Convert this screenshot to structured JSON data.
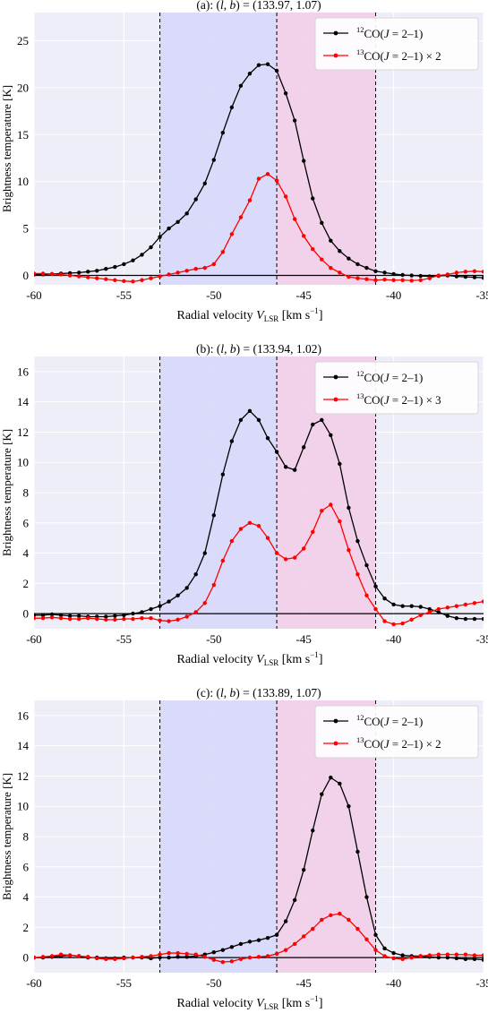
{
  "chart_data": [
    {
      "type": "line",
      "title_prefix": "(a): (",
      "title_l": "l",
      "title_sep": ", ",
      "title_b": "b",
      "title_suffix": ") = (133.97, 1.07)",
      "xlabel_main": "Radial velocity ",
      "xlabel_v": "V",
      "xlabel_sub": "LSR",
      "xlabel_units": " [km s",
      "xlabel_exp": "−1",
      "xlabel_close": "]",
      "ylabel": "Brightness temperature [K]",
      "xlim": [
        -60,
        -35
      ],
      "ylim": [
        -1,
        28
      ],
      "xticks": [
        -60,
        -55,
        -50,
        -45,
        -40,
        -35
      ],
      "yticks": [
        0,
        5,
        10,
        15,
        20,
        25
      ],
      "grid": true,
      "legend_position": "top-right",
      "regions": [
        {
          "from": -53,
          "to": -46.5,
          "color": "#d6d6fa"
        },
        {
          "from": -46.5,
          "to": -41,
          "color": "#f2cde8"
        }
      ],
      "vlines": [
        -53,
        -46.5,
        -41
      ],
      "series": [
        {
          "name_sup": "12",
          "name_main": "CO(",
          "name_j": "J",
          "name_rest": " = 2–1)",
          "color": "#000000",
          "x": [
            -60,
            -59.5,
            -59,
            -58.5,
            -58,
            -57.5,
            -57,
            -56.5,
            -56,
            -55.5,
            -55,
            -54.5,
            -54,
            -53.5,
            -53,
            -52.5,
            -52,
            -51.5,
            -51,
            -50.5,
            -50,
            -49.5,
            -49,
            -48.5,
            -48,
            -47.5,
            -47,
            -46.5,
            -46,
            -45.5,
            -45,
            -44.5,
            -44,
            -43.5,
            -43,
            -42.5,
            -42,
            -41.5,
            -41,
            -40.5,
            -40,
            -39.5,
            -39,
            -38.5,
            -38,
            -37.5,
            -37,
            -36.5,
            -36,
            -35.5,
            -35
          ],
          "y": [
            0.1,
            0.1,
            0.15,
            0.2,
            0.25,
            0.3,
            0.4,
            0.5,
            0.7,
            0.9,
            1.2,
            1.6,
            2.2,
            3.0,
            4.1,
            5.0,
            5.7,
            6.6,
            8.1,
            9.8,
            12.3,
            15.2,
            17.9,
            20.2,
            21.5,
            22.4,
            22.5,
            21.8,
            19.4,
            16.5,
            12.2,
            8.2,
            5.6,
            3.7,
            2.6,
            1.8,
            1.2,
            0.8,
            0.45,
            0.3,
            0.15,
            0.05,
            0,
            -0.05,
            -0.1,
            -0.05,
            0,
            -0.1,
            -0.15,
            -0.2,
            -0.25
          ]
        },
        {
          "name_sup": "13",
          "name_main": "CO(",
          "name_j": "J",
          "name_rest": " = 2–1) × 2",
          "color": "#ff0000",
          "x": [
            -60,
            -59.5,
            -59,
            -58.5,
            -58,
            -57.5,
            -57,
            -56.5,
            -56,
            -55.5,
            -55,
            -54.5,
            -54,
            -53.5,
            -53,
            -52.5,
            -52,
            -51.5,
            -51,
            -50.5,
            -50,
            -49.5,
            -49,
            -48.5,
            -48,
            -47.5,
            -47,
            -46.5,
            -46,
            -45.5,
            -45,
            -44.5,
            -44,
            -43.5,
            -43,
            -42.5,
            -42,
            -41.5,
            -41,
            -40.5,
            -40,
            -39.5,
            -39,
            -38.5,
            -38,
            -37.5,
            -37,
            -36.5,
            -36,
            -35.5,
            -35
          ],
          "y": [
            0.2,
            0.2,
            0.15,
            0.1,
            0,
            -0.1,
            -0.2,
            -0.3,
            -0.4,
            -0.5,
            -0.6,
            -0.65,
            -0.5,
            -0.3,
            -0.1,
            0.1,
            0.3,
            0.5,
            0.7,
            0.8,
            1.2,
            2.5,
            4.4,
            6.2,
            8.0,
            10.3,
            10.8,
            10.1,
            8.4,
            6.0,
            4.2,
            2.8,
            1.7,
            0.8,
            0.3,
            -0.15,
            -0.3,
            -0.4,
            -0.5,
            -0.45,
            -0.5,
            -0.5,
            -0.55,
            -0.5,
            -0.3,
            0,
            0.1,
            0.3,
            0.4,
            0.45,
            0.4
          ]
        }
      ]
    },
    {
      "type": "line",
      "title_prefix": "(b): (",
      "title_l": "l",
      "title_sep": ", ",
      "title_b": "b",
      "title_suffix": ") = (133.94, 1.02)",
      "xlabel_main": "Radial velocity ",
      "xlabel_v": "V",
      "xlabel_sub": "LSR",
      "xlabel_units": " [km s",
      "xlabel_exp": "−1",
      "xlabel_close": "]",
      "ylabel": "Brightness temperature [K]",
      "xlim": [
        -60,
        -35
      ],
      "ylim": [
        -1,
        17
      ],
      "xticks": [
        -60,
        -55,
        -50,
        -45,
        -40,
        -35
      ],
      "yticks": [
        0,
        2,
        4,
        6,
        8,
        10,
        12,
        14,
        16
      ],
      "grid": true,
      "legend_position": "top-right",
      "regions": [
        {
          "from": -53,
          "to": -46.5,
          "color": "#d6d6fa"
        },
        {
          "from": -46.5,
          "to": -41,
          "color": "#f2cde8"
        }
      ],
      "vlines": [
        -53,
        -46.5,
        -41
      ],
      "series": [
        {
          "name_sup": "12",
          "name_main": "CO(",
          "name_j": "J",
          "name_rest": " = 2–1)",
          "color": "#000000",
          "x": [
            -60,
            -59.5,
            -59,
            -58.5,
            -58,
            -57.5,
            -57,
            -56.5,
            -56,
            -55.5,
            -55,
            -54.5,
            -54,
            -53.5,
            -53,
            -52.5,
            -52,
            -51.5,
            -51,
            -50.5,
            -50,
            -49.5,
            -49,
            -48.5,
            -48,
            -47.5,
            -47,
            -46.5,
            -46,
            -45.5,
            -45,
            -44.5,
            -44,
            -43.5,
            -43,
            -42.5,
            -42,
            -41.5,
            -41,
            -40.5,
            -40,
            -39.5,
            -39,
            -38.5,
            -38,
            -37.5,
            -37,
            -36.5,
            -36,
            -35.5,
            -35
          ],
          "y": [
            -0.1,
            -0.1,
            -0.05,
            -0.1,
            -0.15,
            -0.15,
            -0.2,
            -0.2,
            -0.2,
            -0.15,
            -0.1,
            0,
            0.1,
            0.3,
            0.5,
            0.8,
            1.2,
            1.7,
            2.6,
            4.0,
            6.5,
            9.2,
            11.4,
            12.8,
            13.4,
            12.8,
            11.6,
            10.7,
            9.7,
            9.5,
            11.0,
            12.5,
            12.8,
            11.8,
            9.9,
            7.0,
            4.8,
            3.2,
            1.8,
            1.0,
            0.6,
            0.5,
            0.5,
            0.45,
            0.3,
            0.1,
            -0.15,
            -0.3,
            -0.35,
            -0.35,
            -0.35
          ]
        },
        {
          "name_sup": "13",
          "name_main": "CO(",
          "name_j": "J",
          "name_rest": " = 2–1) × 3",
          "color": "#ff0000",
          "x": [
            -60,
            -59.5,
            -59,
            -58.5,
            -58,
            -57.5,
            -57,
            -56.5,
            -56,
            -55.5,
            -55,
            -54.5,
            -54,
            -53.5,
            -53,
            -52.5,
            -52,
            -51.5,
            -51,
            -50.5,
            -50,
            -49.5,
            -49,
            -48.5,
            -48,
            -47.5,
            -47,
            -46.5,
            -46,
            -45.5,
            -45,
            -44.5,
            -44,
            -43.5,
            -43,
            -42.5,
            -42,
            -41.5,
            -41,
            -40.5,
            -40,
            -39.5,
            -39,
            -38.5,
            -38,
            -37.5,
            -37,
            -36.5,
            -36,
            -35.5,
            -35
          ],
          "y": [
            -0.3,
            -0.3,
            -0.25,
            -0.3,
            -0.35,
            -0.35,
            -0.3,
            -0.35,
            -0.4,
            -0.4,
            -0.35,
            -0.35,
            -0.3,
            -0.3,
            -0.45,
            -0.5,
            -0.4,
            -0.2,
            0.1,
            0.7,
            1.9,
            3.5,
            4.8,
            5.6,
            6.0,
            5.8,
            5.0,
            4.0,
            3.6,
            3.7,
            4.3,
            5.4,
            6.8,
            7.2,
            6.1,
            4.2,
            2.6,
            1.2,
            0.3,
            -0.5,
            -0.7,
            -0.65,
            -0.4,
            -0.1,
            0.1,
            0.3,
            0.4,
            0.5,
            0.6,
            0.7,
            0.8
          ]
        }
      ]
    },
    {
      "type": "line",
      "title_prefix": "(c): (",
      "title_l": "l",
      "title_sep": ", ",
      "title_b": "b",
      "title_suffix": ") = (133.89, 1.07)",
      "xlabel_main": "Radial velocity ",
      "xlabel_v": "V",
      "xlabel_sub": "LSR",
      "xlabel_units": " [km s",
      "xlabel_exp": "−1",
      "xlabel_close": "]",
      "ylabel": "Brightness temperature [K]",
      "xlim": [
        -60,
        -35
      ],
      "ylim": [
        -1,
        17
      ],
      "xticks": [
        -60,
        -55,
        -50,
        -45,
        -40,
        -35
      ],
      "yticks": [
        0,
        2,
        4,
        6,
        8,
        10,
        12,
        14,
        16
      ],
      "grid": true,
      "legend_position": "top-right",
      "regions": [
        {
          "from": -53,
          "to": -46.5,
          "color": "#d6d6fa"
        },
        {
          "from": -46.5,
          "to": -41,
          "color": "#f2cde8"
        }
      ],
      "vlines": [
        -53,
        -46.5,
        -41
      ],
      "series": [
        {
          "name_sup": "12",
          "name_main": "CO(",
          "name_j": "J",
          "name_rest": " = 2–1)",
          "color": "#000000",
          "x": [
            -60,
            -59.5,
            -59,
            -58.5,
            -58,
            -57.5,
            -57,
            -56.5,
            -56,
            -55.5,
            -55,
            -54.5,
            -54,
            -53.5,
            -53,
            -52.5,
            -52,
            -51.5,
            -51,
            -50.5,
            -50,
            -49.5,
            -49,
            -48.5,
            -48,
            -47.5,
            -47,
            -46.5,
            -46,
            -45.5,
            -45,
            -44.5,
            -44,
            -43.5,
            -43,
            -42.5,
            -42,
            -41.5,
            -41,
            -40.5,
            -40,
            -39.5,
            -39,
            -38.5,
            -38,
            -37.5,
            -37,
            -36.5,
            -36,
            -35.5,
            -35
          ],
          "y": [
            0,
            0,
            0.05,
            0.1,
            0.15,
            0.1,
            0,
            0,
            -0.05,
            -0.05,
            0,
            0,
            0,
            -0.05,
            0,
            0,
            0.05,
            0.05,
            0.1,
            0.2,
            0.35,
            0.5,
            0.7,
            0.9,
            1.05,
            1.15,
            1.3,
            1.5,
            2.4,
            3.8,
            5.8,
            8.4,
            10.8,
            11.9,
            11.5,
            10.0,
            7.0,
            4.0,
            1.5,
            0.6,
            0.3,
            0.15,
            0.1,
            0.1,
            0.05,
            0,
            0,
            -0.05,
            -0.1,
            -0.1,
            -0.15
          ]
        },
        {
          "name_sup": "13",
          "name_main": "CO(",
          "name_j": "J",
          "name_rest": " = 2–1) × 2",
          "color": "#ff0000",
          "x": [
            -60,
            -59.5,
            -59,
            -58.5,
            -58,
            -57.5,
            -57,
            -56.5,
            -56,
            -55.5,
            -55,
            -54.5,
            -54,
            -53.5,
            -53,
            -52.5,
            -52,
            -51.5,
            -51,
            -50.5,
            -50,
            -49.5,
            -49,
            -48.5,
            -48,
            -47.5,
            -47,
            -46.5,
            -46,
            -45.5,
            -45,
            -44.5,
            -44,
            -43.5,
            -43,
            -42.5,
            -42,
            -41.5,
            -41,
            -40.5,
            -40,
            -39.5,
            -39,
            -38.5,
            -38,
            -37.5,
            -37,
            -36.5,
            -36,
            -35.5,
            -35
          ],
          "y": [
            0,
            0.05,
            0.1,
            0.2,
            0.15,
            0.1,
            0.05,
            -0.05,
            -0.1,
            -0.1,
            -0.05,
            0,
            0.05,
            0.1,
            0.2,
            0.3,
            0.3,
            0.25,
            0.2,
            0.05,
            -0.15,
            -0.3,
            -0.25,
            -0.1,
            0,
            0.05,
            0.1,
            0.25,
            0.5,
            0.9,
            1.4,
            1.9,
            2.5,
            2.8,
            2.9,
            2.5,
            1.9,
            1.2,
            0.5,
            0.1,
            -0.05,
            -0.1,
            0,
            0.1,
            0.15,
            0.2,
            0.2,
            0.2,
            0.2,
            0.15,
            0.15
          ]
        }
      ]
    }
  ]
}
